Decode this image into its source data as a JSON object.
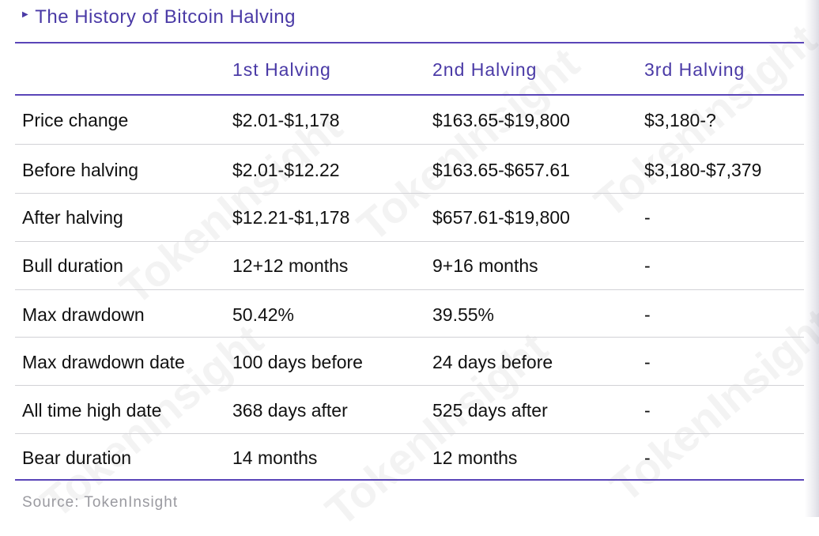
{
  "subtitle": "The History of Bitcoin Halving",
  "watermark": "TokenInsight",
  "table": {
    "headers": [
      "",
      "1st Halving",
      "2nd Halving",
      "3rd Halving"
    ],
    "rows": [
      {
        "label": "Price change",
        "h1": "$2.01-$1,178",
        "h2": "$163.65-$19,800",
        "h3": "$3,180-?"
      },
      {
        "label": "Before halving",
        "h1": "$2.01-$12.22",
        "h2": "$163.65-$657.61",
        "h3": "$3,180-$7,379"
      },
      {
        "label": "After halving",
        "h1": "$12.21-$1,178",
        "h2": "$657.61-$19,800",
        "h3": "-"
      },
      {
        "label": "Bull duration",
        "h1": "12+12 months",
        "h2": "9+16 months",
        "h3": "-"
      },
      {
        "label": "Max drawdown",
        "h1": "50.42%",
        "h2": "39.55%",
        "h3": "-"
      },
      {
        "label": "Max drawdown date",
        "h1": "100 days before",
        "h2": "24 days before",
        "h3": "-"
      },
      {
        "label": "All time high date",
        "h1": "368 days after",
        "h2": "525 days after",
        "h3": "-"
      },
      {
        "label": "Bear duration",
        "h1": "14 months",
        "h2": "12 months",
        "h3": "-"
      }
    ]
  },
  "source": "Source: TokenInsight",
  "colors": {
    "accent": "#4a3aa6",
    "rule": "#5a45b8",
    "divider": "#d2d2d6",
    "source": "#9a9aa0"
  }
}
